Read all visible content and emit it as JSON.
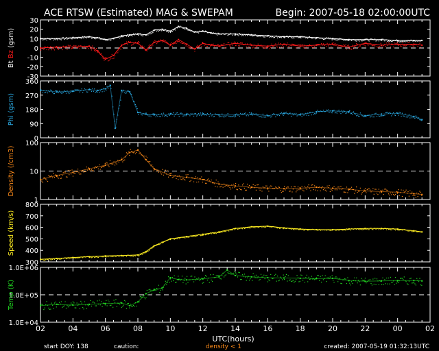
{
  "header": {
    "title": "ACE RTSW (Estimated) MAG & SWEPAM",
    "begin": "Begin: 2007-05-18 02:00:00UTC"
  },
  "footer": {
    "start_doy": "start DOY: 138",
    "caution": "caution:",
    "density_note": "density < 1",
    "created": "created: 2007-05-19 01:32:13UTC"
  },
  "colors": {
    "bt": "#ffffff",
    "bz": "#ff1a1a",
    "phi": "#2aa8e0",
    "density": "#ff8c1a",
    "speed": "#ffee22",
    "temp": "#22dd22",
    "dashed": "#ffffff"
  },
  "chart_data": [
    {
      "type": "line",
      "ylabel_parts": [
        "Bt",
        "Bz",
        "(gsm)"
      ],
      "ylabel": "Bt Bz (gsm)",
      "ylim": [
        -30,
        30
      ],
      "yticks": [
        "30",
        "20",
        "10",
        "0",
        "-10",
        "-20",
        "-30"
      ],
      "reference_line": 0,
      "x": [
        2,
        3,
        4,
        5,
        5.5,
        6,
        6.5,
        7,
        7.5,
        8,
        8.5,
        9,
        9.5,
        10,
        10.5,
        11,
        11.5,
        12,
        12.5,
        13,
        14,
        15,
        16,
        17,
        18,
        19,
        20,
        21,
        22,
        23,
        24,
        25,
        25.5
      ],
      "series": [
        {
          "name": "Bt",
          "values": [
            10,
            10,
            11,
            12,
            11,
            9,
            10,
            13,
            14,
            15,
            14,
            19,
            20,
            18,
            23,
            21,
            17,
            18,
            16,
            15,
            15,
            14,
            13,
            12,
            12,
            11,
            10,
            9,
            9,
            9,
            8,
            8,
            8
          ]
        },
        {
          "name": "Bz",
          "values": [
            0,
            1,
            1,
            2,
            -3,
            -12,
            -8,
            3,
            6,
            5,
            -2,
            6,
            8,
            3,
            9,
            4,
            -1,
            5,
            3,
            2,
            5,
            3,
            2,
            4,
            2,
            3,
            4,
            1,
            5,
            3,
            4,
            4,
            3
          ]
        }
      ]
    },
    {
      "type": "scatter",
      "ylabel": "Phi (gsm)",
      "ylim": [
        0,
        360
      ],
      "yticks": [
        "360",
        "270",
        "180",
        "90",
        "0"
      ],
      "x": [
        2,
        3,
        4,
        5,
        5.5,
        6,
        6.3,
        6.6,
        7,
        7.5,
        8,
        8.5,
        9,
        10,
        11,
        12,
        13,
        14,
        15,
        16,
        17,
        18,
        19,
        20,
        21,
        22,
        23,
        24,
        25,
        25.5
      ],
      "series": [
        {
          "name": "Phi",
          "values": [
            300,
            290,
            295,
            305,
            300,
            310,
            330,
            60,
            300,
            290,
            160,
            150,
            145,
            150,
            148,
            150,
            145,
            145,
            150,
            140,
            155,
            145,
            165,
            170,
            165,
            140,
            150,
            155,
            135,
            115
          ]
        }
      ]
    },
    {
      "type": "scatter",
      "ylabel": "Density (/cm3)",
      "yscale": "log",
      "ylim": [
        1,
        100
      ],
      "yticks": [
        "100",
        "10",
        "1"
      ],
      "reference_line": 10,
      "x": [
        2,
        3,
        4,
        5,
        6,
        7,
        7.5,
        8,
        8.5,
        9,
        10,
        11,
        12,
        13,
        14,
        15,
        16,
        17,
        18,
        19,
        20,
        21,
        22,
        23,
        24,
        25,
        25.5
      ],
      "series": [
        {
          "name": "Density",
          "values": [
            5,
            7,
            9,
            12,
            16,
            25,
            45,
            55,
            25,
            12,
            7,
            6,
            5,
            3.5,
            3,
            2.7,
            2.5,
            2.4,
            2.5,
            2.7,
            2.5,
            2.3,
            2,
            1.9,
            1.8,
            1.6,
            1.5
          ]
        }
      ]
    },
    {
      "type": "line",
      "ylabel": "Speed (km/s)",
      "ylim": [
        300,
        800
      ],
      "yticks": [
        "800",
        "700",
        "600",
        "500",
        "400",
        "300"
      ],
      "x": [
        2,
        3,
        4,
        5,
        6,
        7,
        8,
        8.5,
        9,
        9.5,
        10,
        11,
        12,
        13,
        14,
        15,
        16,
        17,
        18,
        19,
        20,
        21,
        22,
        23,
        24,
        25,
        25.5
      ],
      "series": [
        {
          "name": "Speed",
          "values": [
            322,
            330,
            338,
            345,
            352,
            355,
            360,
            390,
            440,
            470,
            500,
            520,
            540,
            560,
            590,
            605,
            610,
            595,
            585,
            580,
            580,
            585,
            590,
            590,
            585,
            570,
            560
          ]
        }
      ]
    },
    {
      "type": "scatter",
      "ylabel": "Temp (K)",
      "yscale": "log",
      "ylim": [
        10000,
        1000000
      ],
      "yticks": [
        "1.0E+06",
        "1.0E+05",
        "1.0E+04"
      ],
      "reference_line": 100000,
      "x": [
        2,
        3,
        4,
        5,
        6,
        7,
        7.5,
        8,
        8.5,
        9,
        9.5,
        10,
        10.5,
        11,
        12,
        13,
        13.5,
        14,
        15,
        16,
        17,
        18,
        19,
        20,
        21,
        22,
        23,
        24,
        25,
        25.5
      ],
      "series": [
        {
          "name": "Temp",
          "values": [
            40000,
            45000,
            42000,
            45000,
            48000,
            50000,
            40000,
            55000,
            110000,
            150000,
            180000,
            420000,
            360000,
            350000,
            380000,
            450000,
            800000,
            500000,
            450000,
            420000,
            410000,
            400000,
            390000,
            400000,
            330000,
            310000,
            320000,
            330000,
            330000,
            320000
          ]
        }
      ]
    }
  ],
  "xaxis": {
    "label": "UTC(hours)",
    "range": [
      2,
      26
    ],
    "tick_labels": [
      "02",
      "04",
      "06",
      "08",
      "10",
      "12",
      "14",
      "16",
      "18",
      "20",
      "22",
      "00",
      "02"
    ]
  }
}
